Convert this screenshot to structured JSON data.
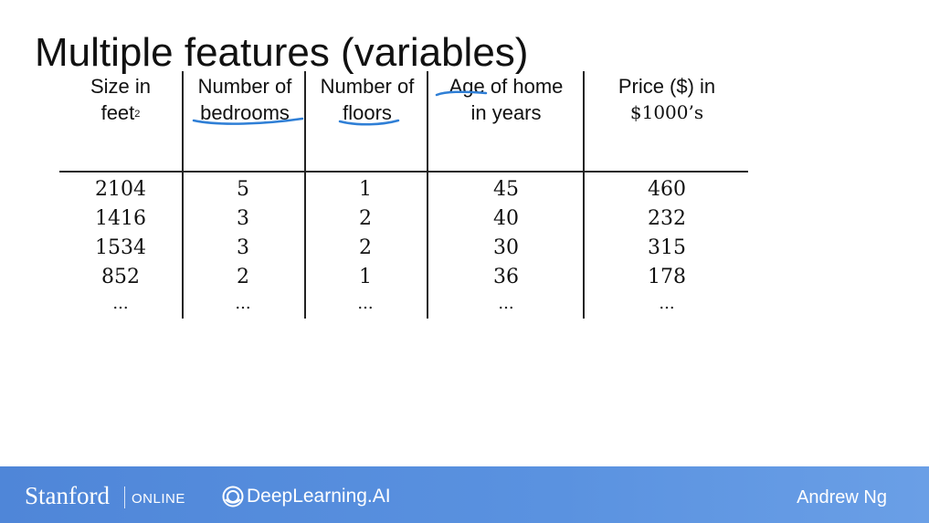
{
  "slide": {
    "title": "Multiple features (variables)"
  },
  "table": {
    "headers": [
      {
        "line1": "Size in",
        "line2": "feet",
        "sup": "2"
      },
      {
        "line1": "Number of",
        "line2": "bedrooms"
      },
      {
        "line1": "Number of",
        "line2": "floors"
      },
      {
        "line1": "Age of home",
        "line2": "in years"
      },
      {
        "line1": "Price ($) in",
        "line2": "$1000’s"
      }
    ],
    "columns": [
      [
        "2104",
        "1416",
        "1534",
        "852"
      ],
      [
        "5",
        "3",
        "3",
        "2"
      ],
      [
        "1",
        "2",
        "2",
        "1"
      ],
      [
        "45",
        "40",
        "30",
        "36"
      ],
      [
        "460",
        "232",
        "315",
        "178"
      ]
    ],
    "ellipsis": "..."
  },
  "footer": {
    "stanford": "Stanford",
    "online": "ONLINE",
    "deeplearning": "DeepLearning.AI",
    "author": "Andrew Ng"
  },
  "colors": {
    "footer_bg": "#5a92e0",
    "annotation_ink": "#2f7fd6"
  }
}
